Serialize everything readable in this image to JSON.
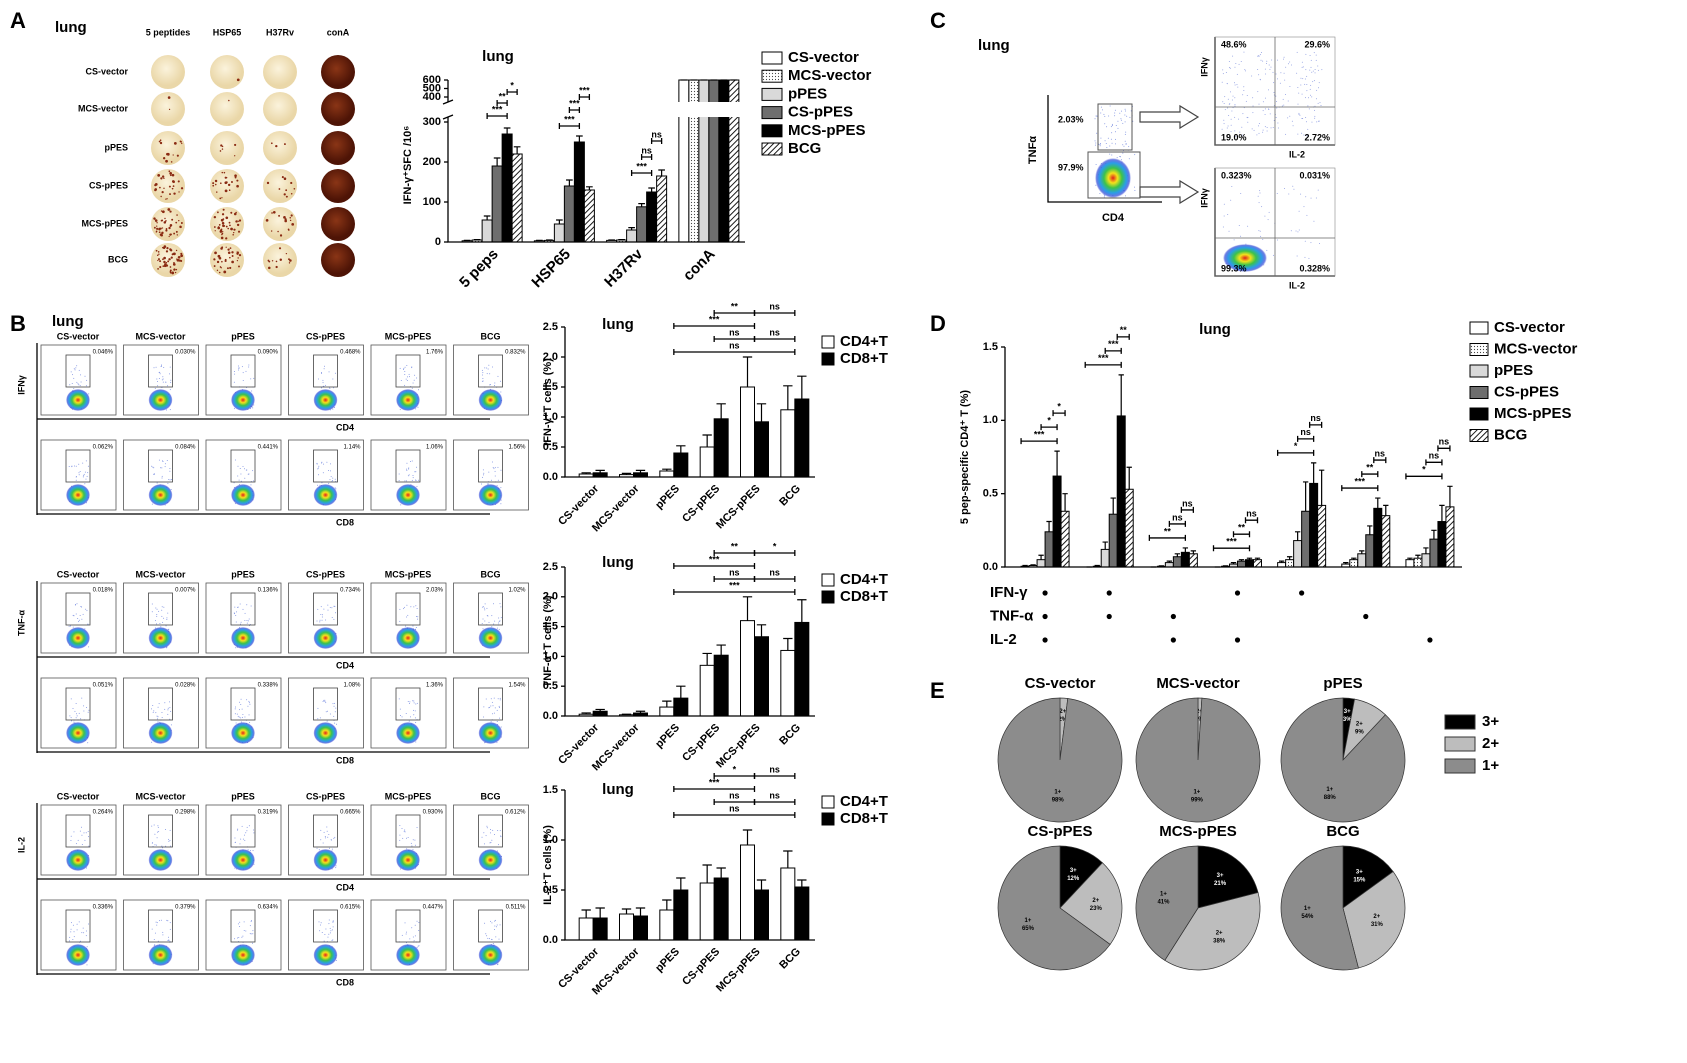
{
  "panels": [
    "A",
    "B",
    "C",
    "D",
    "E"
  ],
  "elispot": {
    "tissue": "lung",
    "columns": [
      "5 peptides",
      "HSP65",
      "H37Rv",
      "conA"
    ],
    "rows": [
      "CS-vector",
      "MCS-vector",
      "pPES",
      "CS-pPES",
      "MCS-pPES",
      "BCG"
    ]
  },
  "flow_B": {
    "tissue": "lung",
    "columns": [
      "CS-vector",
      "MCS-vector",
      "pPES",
      "CS-pPES",
      "MCS-pPES",
      "BCG"
    ],
    "blocks": [
      {
        "marker": "IFNγ",
        "rows": [
          {
            "axis": "CD4",
            "gates": [
              "0.046%",
              "0.030%",
              "0.090%",
              "0.468%",
              "1.76%",
              "0.832%"
            ]
          },
          {
            "axis": "CD8",
            "gates": [
              "0.062%",
              "0.084%",
              "0.441%",
              "1.14%",
              "1.06%",
              "1.56%"
            ]
          }
        ]
      },
      {
        "marker": "TNF-α",
        "rows": [
          {
            "axis": "CD4",
            "gates": [
              "0.018%",
              "0.007%",
              "0.136%",
              "0.734%",
              "2.03%",
              "1.02%"
            ]
          },
          {
            "axis": "CD8",
            "gates": [
              "0.051%",
              "0.028%",
              "0.338%",
              "1.08%",
              "1.36%",
              "1.54%"
            ]
          }
        ]
      },
      {
        "marker": "IL-2",
        "rows": [
          {
            "axis": "CD4",
            "gates": [
              "0.264%",
              "0.298%",
              "0.319%",
              "0.665%",
              "0.930%",
              "0.612%"
            ]
          },
          {
            "axis": "CD8",
            "gates": [
              "0.336%",
              "0.379%",
              "0.634%",
              "0.615%",
              "0.447%",
              "0.511%"
            ]
          }
        ]
      }
    ]
  },
  "flow_C": {
    "tissue": "lung",
    "x_label": "CD4",
    "y_label": "TNFα",
    "gates": [
      "2.03%",
      "97.9%"
    ],
    "quadrants": [
      {
        "x_label": "IL-2",
        "y_label": "IFNγ",
        "values": [
          "48.6%",
          "29.6%",
          "19.0%",
          "2.72%"
        ]
      },
      {
        "x_label": "IL-2",
        "y_label": "IFNγ",
        "values": [
          "0.323%",
          "0.031%",
          "99.3%",
          "0.328%"
        ]
      }
    ]
  },
  "chart_data": [
    {
      "type": "bar",
      "title": "lung",
      "ylabel": "IFN-γ⁺SFC /10⁶",
      "categories": [
        "5 peps",
        "HSP65",
        "H37Rv",
        "conA"
      ],
      "ylim": [
        0,
        600
      ],
      "ybreak": [
        300,
        400
      ],
      "yticks": [
        0,
        100,
        200,
        300,
        400,
        500,
        600
      ],
      "series": [
        {
          "name": "CS-vector",
          "color": "#ffffff",
          "values": [
            3,
            3,
            4,
            600
          ],
          "errors": [
            1,
            1,
            1,
            0
          ]
        },
        {
          "name": "MCS-vector",
          "pattern": "dots",
          "values": [
            5,
            4,
            5,
            600
          ],
          "errors": [
            1,
            1,
            1,
            0
          ]
        },
        {
          "name": "pPES",
          "color": "#d9d9d9",
          "values": [
            55,
            45,
            30,
            600
          ],
          "errors": [
            10,
            10,
            6,
            0
          ]
        },
        {
          "name": "CS-pPES",
          "color": "#6e6e6e",
          "values": [
            190,
            140,
            88,
            600
          ],
          "errors": [
            20,
            15,
            8,
            0
          ]
        },
        {
          "name": "MCS-pPES",
          "color": "#000000",
          "values": [
            270,
            250,
            125,
            600
          ],
          "errors": [
            15,
            15,
            10,
            0
          ]
        },
        {
          "name": "BCG",
          "pattern": "hatch",
          "values": [
            220,
            130,
            165,
            600
          ],
          "errors": [
            18,
            8,
            15,
            0
          ]
        }
      ],
      "significance": [
        "***",
        "**",
        "*",
        "***",
        "***",
        "***",
        "***",
        "ns",
        "ns"
      ]
    },
    {
      "type": "bar",
      "title": "lung",
      "ylabel": "IFN-γ⁺T cells (%)",
      "categories": [
        "CS-vector",
        "MCS-vector",
        "pPES",
        "CS-pPES",
        "MCS-pPES",
        "BCG"
      ],
      "ylim": [
        0,
        2.5
      ],
      "yticks": [
        {
          "value": 0,
          "label": "0.0"
        },
        0.5,
        {
          "value": 1,
          "label": "1.0"
        },
        1.5,
        {
          "value": 2,
          "label": "2.0"
        },
        2.5
      ],
      "series": [
        {
          "name": "CD4+T",
          "color": "#ffffff",
          "values": [
            0.05,
            0.04,
            0.1,
            0.5,
            1.5,
            1.12
          ],
          "errors": [
            0.02,
            0.02,
            0.03,
            0.2,
            0.5,
            0.4
          ]
        },
        {
          "name": "CD8+T",
          "color": "#000000",
          "values": [
            0.07,
            0.07,
            0.4,
            0.97,
            0.92,
            1.3
          ],
          "errors": [
            0.04,
            0.04,
            0.12,
            0.25,
            0.3,
            0.38
          ]
        }
      ],
      "significance": [
        "***",
        "**",
        "ns",
        "ns",
        "ns",
        "ns"
      ]
    },
    {
      "type": "bar",
      "title": "lung",
      "ylabel": "TNF-α⁺T cells (%)",
      "categories": [
        "CS-vector",
        "MCS-vector",
        "pPES",
        "CS-pPES",
        "MCS-pPES",
        "BCG"
      ],
      "ylim": [
        0,
        2.5
      ],
      "yticks": [
        {
          "value": 0,
          "label": "0.0"
        },
        0.5,
        {
          "value": 1,
          "label": "1.0"
        },
        1.5,
        {
          "value": 2,
          "label": "2.0"
        },
        2.5
      ],
      "series": [
        {
          "name": "CD4+T",
          "color": "#ffffff",
          "values": [
            0.03,
            0.02,
            0.15,
            0.85,
            1.6,
            1.1
          ],
          "errors": [
            0.02,
            0.01,
            0.1,
            0.2,
            0.4,
            0.2
          ]
        },
        {
          "name": "CD8+T",
          "color": "#000000",
          "values": [
            0.08,
            0.05,
            0.3,
            1.02,
            1.33,
            1.57
          ],
          "errors": [
            0.03,
            0.03,
            0.2,
            0.17,
            0.2,
            0.38
          ]
        }
      ],
      "significance": [
        "***",
        "**",
        "*",
        "ns",
        "ns",
        "***"
      ]
    },
    {
      "type": "bar",
      "title": "lung",
      "ylabel": "IL-2⁺T cells (%)",
      "categories": [
        "CS-vector",
        "MCS-vector",
        "pPES",
        "CS-pPES",
        "MCS-pPES",
        "BCG"
      ],
      "ylim": [
        0,
        1.5
      ],
      "yticks": [
        {
          "value": 0,
          "label": "0.0"
        },
        0.5,
        {
          "value": 1,
          "label": "1.0"
        },
        1.5
      ],
      "series": [
        {
          "name": "CD4+T",
          "color": "#ffffff",
          "values": [
            0.22,
            0.26,
            0.3,
            0.57,
            0.95,
            0.72
          ],
          "errors": [
            0.08,
            0.05,
            0.1,
            0.18,
            0.15,
            0.17
          ]
        },
        {
          "name": "CD8+T",
          "color": "#000000",
          "values": [
            0.22,
            0.24,
            0.5,
            0.62,
            0.5,
            0.53
          ],
          "errors": [
            0.1,
            0.08,
            0.12,
            0.1,
            0.1,
            0.07
          ]
        }
      ],
      "significance": [
        "***",
        "*",
        "ns",
        "ns",
        "ns",
        "ns"
      ]
    },
    {
      "type": "bar",
      "title": "lung",
      "ylabel": "5 pep-specific CD4⁺ T (%)",
      "ylim": [
        0,
        1.5
      ],
      "yticks": [
        {
          "value": 0,
          "label": "0.0"
        },
        0.5,
        {
          "value": 1,
          "label": "1.0"
        },
        1.5
      ],
      "series": [
        {
          "name": "CS-vector",
          "color": "#ffffff",
          "values": [
            0.005,
            0,
            0,
            0,
            0.03,
            0.02,
            0.05
          ],
          "errors": [
            0.005,
            0,
            0,
            0,
            0.01,
            0.01,
            0.01
          ]
        },
        {
          "name": "MCS-vector",
          "pattern": "dots",
          "values": [
            0.01,
            0.005,
            0.005,
            0.005,
            0.05,
            0.05,
            0.06
          ],
          "errors": [
            0.005,
            0.005,
            0.003,
            0.003,
            0.02,
            0.01,
            0.02
          ]
        },
        {
          "name": "pPES",
          "color": "#d9d9d9",
          "values": [
            0.05,
            0.12,
            0.03,
            0.02,
            0.18,
            0.09,
            0.09
          ],
          "errors": [
            0.03,
            0.05,
            0.01,
            0.01,
            0.06,
            0.02,
            0.04
          ]
        },
        {
          "name": "CS-pPES",
          "color": "#6e6e6e",
          "values": [
            0.24,
            0.36,
            0.07,
            0.04,
            0.38,
            0.22,
            0.19
          ],
          "errors": [
            0.07,
            0.11,
            0.02,
            0.01,
            0.2,
            0.06,
            0.06
          ]
        },
        {
          "name": "MCS-pPES",
          "color": "#000000",
          "values": [
            0.62,
            1.03,
            0.1,
            0.05,
            0.57,
            0.4,
            0.31
          ],
          "errors": [
            0.17,
            0.28,
            0.03,
            0.01,
            0.14,
            0.07,
            0.11
          ]
        },
        {
          "name": "BCG",
          "pattern": "hatch",
          "values": [
            0.38,
            0.53,
            0.09,
            0.05,
            0.42,
            0.35,
            0.41
          ],
          "errors": [
            0.12,
            0.15,
            0.02,
            0.01,
            0.24,
            0.07,
            0.14
          ]
        }
      ],
      "matrix": {
        "rows": [
          "IFN-γ",
          "TNF-α",
          "IL-2"
        ],
        "marks": [
          [
            true,
            true,
            false,
            true,
            true,
            false,
            false
          ],
          [
            true,
            true,
            true,
            false,
            false,
            true,
            false
          ],
          [
            true,
            false,
            true,
            true,
            false,
            false,
            true
          ]
        ]
      },
      "significance": [
        [
          "***",
          "*",
          "*"
        ],
        [
          "***",
          "***",
          "**"
        ],
        [
          "**",
          "ns",
          "ns"
        ],
        [
          "***",
          "**",
          "ns"
        ],
        [
          "*",
          "ns",
          "ns"
        ],
        [
          "***",
          "**",
          "ns"
        ],
        [
          "*",
          "ns",
          "ns"
        ]
      ]
    },
    {
      "type": "pie",
      "categories": [
        "3+",
        "2+",
        "1+"
      ],
      "colors": [
        "#000000",
        "#bdbdbd",
        "#8c8c8c"
      ],
      "pies": [
        {
          "title": "CS-vector",
          "values": [
            0,
            2,
            98
          ],
          "value_labels": [
            null,
            "2%",
            "98%"
          ]
        },
        {
          "title": "MCS-vector",
          "values": [
            0,
            1,
            99
          ],
          "value_labels": [
            null,
            "1%",
            "99%"
          ]
        },
        {
          "title": "pPES",
          "values": [
            3,
            9,
            88
          ],
          "value_labels": [
            "3%",
            "9%",
            "88%"
          ]
        },
        {
          "title": "CS-pPES",
          "values": [
            12,
            23,
            65
          ],
          "value_labels": [
            "12%",
            "23%",
            "65%"
          ]
        },
        {
          "title": "MCS-pPES",
          "values": [
            21,
            38,
            41
          ],
          "value_labels": [
            "21%",
            "38%",
            "41%"
          ]
        },
        {
          "title": "BCG",
          "values": [
            15,
            31,
            54
          ],
          "value_labels": [
            "15%",
            "31%",
            "54%"
          ]
        }
      ]
    }
  ]
}
